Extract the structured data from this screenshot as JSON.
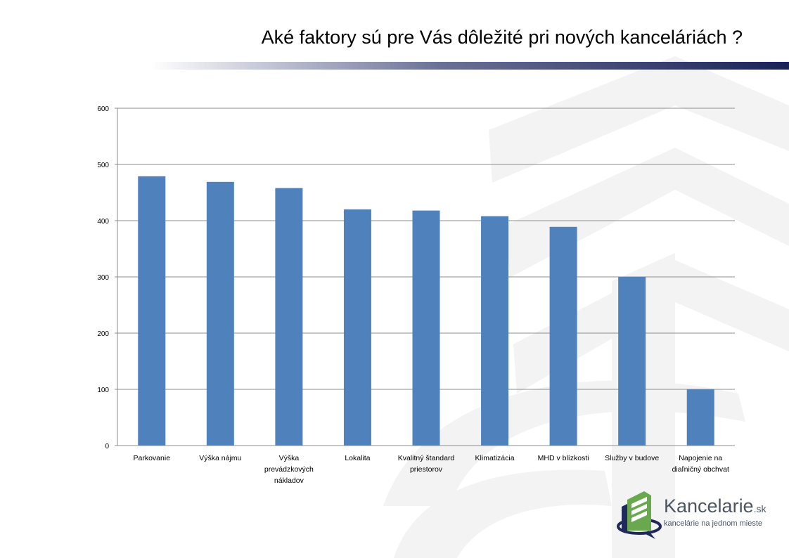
{
  "slide": {
    "title": "Aké faktory sú pre Vás dôležité pri nových kanceláriách ?"
  },
  "logo": {
    "brand": "Kancelarie",
    "tld": ".sk",
    "tagline": "kancelárie na jednom mieste",
    "accent_color": "#6aa84f",
    "dark_color": "#1f2a5a"
  },
  "colors": {
    "bar": "#4f81bd",
    "grid": "#8c8c8c",
    "axis": "#8c8c8c",
    "title_bar": "#1b2258"
  },
  "chart_data": {
    "type": "bar",
    "title": "",
    "xlabel": "",
    "ylabel": "",
    "ylim": [
      0,
      600
    ],
    "yticks": [
      0,
      100,
      200,
      300,
      400,
      500,
      600
    ],
    "grid": true,
    "legend": "none",
    "categories": [
      [
        "Parkovanie"
      ],
      [
        "Výška nájmu"
      ],
      [
        "Výška",
        "prevádzkových",
        "nákladov"
      ],
      [
        "Lokalita"
      ],
      [
        "Kvalitný štandard",
        "priestorov"
      ],
      [
        "Klimatizácia"
      ],
      [
        "MHD v blízkosti"
      ],
      [
        "Služby v budove"
      ],
      [
        "Napojenie na",
        "diaľničný obchvat"
      ]
    ],
    "values": [
      479,
      469,
      458,
      420,
      418,
      408,
      389,
      300,
      100
    ]
  }
}
